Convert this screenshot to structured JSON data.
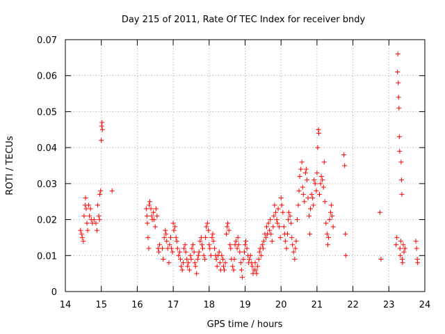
{
  "chart_data": {
    "type": "scatter",
    "title": "Day 215 of 2011, Rate Of TEC Index for receiver bndy",
    "xlabel": "GPS time / hours",
    "ylabel": "ROTI / TECUs",
    "xlim": [
      14,
      24
    ],
    "ylim": [
      0,
      0.07
    ],
    "x_ticks": [
      "14",
      "15",
      "16",
      "17",
      "18",
      "19",
      "20",
      "21",
      "22",
      "23",
      "24"
    ],
    "y_ticks": [
      "0",
      "0.01",
      "0.02",
      "0.03",
      "0.04",
      "0.05",
      "0.06",
      "0.07"
    ],
    "grid": true,
    "marker": "+",
    "color": "#ff0000",
    "series": [
      {
        "points": [
          [
            14.42,
            0.017
          ],
          [
            14.45,
            0.016
          ],
          [
            14.47,
            0.015
          ],
          [
            14.5,
            0.014
          ],
          [
            14.52,
            0.021
          ],
          [
            14.55,
            0.024
          ],
          [
            14.56,
            0.026
          ],
          [
            14.58,
            0.023
          ],
          [
            14.6,
            0.019
          ],
          [
            14.62,
            0.017
          ],
          [
            14.65,
            0.024
          ],
          [
            14.67,
            0.021
          ],
          [
            14.7,
            0.023
          ],
          [
            14.72,
            0.02
          ],
          [
            14.75,
            0.019
          ],
          [
            14.8,
            0.02
          ],
          [
            14.85,
            0.019
          ],
          [
            14.88,
            0.017
          ],
          [
            14.9,
            0.024
          ],
          [
            14.93,
            0.021
          ],
          [
            14.95,
            0.02
          ],
          [
            14.96,
            0.027
          ],
          [
            14.98,
            0.028
          ],
          [
            15.0,
            0.042
          ],
          [
            15.01,
            0.046
          ],
          [
            15.02,
            0.047
          ],
          [
            15.03,
            0.045
          ],
          [
            15.3,
            0.028
          ],
          [
            16.25,
            0.023
          ],
          [
            16.27,
            0.021
          ],
          [
            16.28,
            0.019
          ],
          [
            16.3,
            0.015
          ],
          [
            16.32,
            0.012
          ],
          [
            16.33,
            0.024
          ],
          [
            16.35,
            0.025
          ],
          [
            16.38,
            0.023
          ],
          [
            16.4,
            0.021
          ],
          [
            16.42,
            0.02
          ],
          [
            16.45,
            0.022
          ],
          [
            16.47,
            0.02
          ],
          [
            16.5,
            0.018
          ],
          [
            16.52,
            0.023
          ],
          [
            16.55,
            0.021
          ],
          [
            16.58,
            0.012
          ],
          [
            16.6,
            0.011
          ],
          [
            16.62,
            0.013
          ],
          [
            16.7,
            0.012
          ],
          [
            16.72,
            0.009
          ],
          [
            16.75,
            0.015
          ],
          [
            16.78,
            0.017
          ],
          [
            16.8,
            0.016
          ],
          [
            16.82,
            0.014
          ],
          [
            16.85,
            0.012
          ],
          [
            16.88,
            0.008
          ],
          [
            16.9,
            0.013
          ],
          [
            16.93,
            0.015
          ],
          [
            16.95,
            0.012
          ],
          [
            16.98,
            0.011
          ],
          [
            17.0,
            0.019
          ],
          [
            17.02,
            0.017
          ],
          [
            17.05,
            0.018
          ],
          [
            17.08,
            0.015
          ],
          [
            17.1,
            0.014
          ],
          [
            17.12,
            0.012
          ],
          [
            17.15,
            0.01
          ],
          [
            17.18,
            0.011
          ],
          [
            17.2,
            0.009
          ],
          [
            17.22,
            0.007
          ],
          [
            17.25,
            0.006
          ],
          [
            17.28,
            0.008
          ],
          [
            17.3,
            0.012
          ],
          [
            17.33,
            0.013
          ],
          [
            17.35,
            0.011
          ],
          [
            17.38,
            0.009
          ],
          [
            17.4,
            0.007
          ],
          [
            17.42,
            0.008
          ],
          [
            17.45,
            0.006
          ],
          [
            17.48,
            0.01
          ],
          [
            17.5,
            0.009
          ],
          [
            17.52,
            0.012
          ],
          [
            17.55,
            0.013
          ],
          [
            17.58,
            0.011
          ],
          [
            17.6,
            0.008
          ],
          [
            17.62,
            0.007
          ],
          [
            17.65,
            0.005
          ],
          [
            17.68,
            0.009
          ],
          [
            17.7,
            0.01
          ],
          [
            17.72,
            0.011
          ],
          [
            17.75,
            0.014
          ],
          [
            17.78,
            0.015
          ],
          [
            17.8,
            0.013
          ],
          [
            17.82,
            0.012
          ],
          [
            17.85,
            0.01
          ],
          [
            17.88,
            0.009
          ],
          [
            17.9,
            0.015
          ],
          [
            17.92,
            0.018
          ],
          [
            17.95,
            0.019
          ],
          [
            17.98,
            0.017
          ],
          [
            18.0,
            0.013
          ],
          [
            18.02,
            0.012
          ],
          [
            18.05,
            0.01
          ],
          [
            18.08,
            0.015
          ],
          [
            18.1,
            0.016
          ],
          [
            18.12,
            0.014
          ],
          [
            18.15,
            0.012
          ],
          [
            18.18,
            0.01
          ],
          [
            18.2,
            0.009
          ],
          [
            18.22,
            0.007
          ],
          [
            18.25,
            0.01
          ],
          [
            18.28,
            0.011
          ],
          [
            18.3,
            0.008
          ],
          [
            18.32,
            0.006
          ],
          [
            18.35,
            0.01
          ],
          [
            18.38,
            0.009
          ],
          [
            18.4,
            0.007
          ],
          [
            18.42,
            0.006
          ],
          [
            18.45,
            0.008
          ],
          [
            18.48,
            0.016
          ],
          [
            18.5,
            0.018
          ],
          [
            18.52,
            0.019
          ],
          [
            18.55,
            0.017
          ],
          [
            18.58,
            0.013
          ],
          [
            18.6,
            0.012
          ],
          [
            18.62,
            0.009
          ],
          [
            18.65,
            0.007
          ],
          [
            18.68,
            0.006
          ],
          [
            18.7,
            0.009
          ],
          [
            18.72,
            0.013
          ],
          [
            18.75,
            0.014
          ],
          [
            18.78,
            0.012
          ],
          [
            18.8,
            0.015
          ],
          [
            18.82,
            0.013
          ],
          [
            18.85,
            0.011
          ],
          [
            18.88,
            0.008
          ],
          [
            18.9,
            0.006
          ],
          [
            18.92,
            0.004
          ],
          [
            18.95,
            0.009
          ],
          [
            18.98,
            0.011
          ],
          [
            19.0,
            0.013
          ],
          [
            19.02,
            0.014
          ],
          [
            19.05,
            0.012
          ],
          [
            19.08,
            0.01
          ],
          [
            19.1,
            0.008
          ],
          [
            19.12,
            0.009
          ],
          [
            19.15,
            0.01
          ],
          [
            19.18,
            0.008
          ],
          [
            19.2,
            0.007
          ],
          [
            19.22,
            0.005
          ],
          [
            19.25,
            0.006
          ],
          [
            19.28,
            0.008
          ],
          [
            19.3,
            0.006
          ],
          [
            19.32,
            0.005
          ],
          [
            19.35,
            0.007
          ],
          [
            19.38,
            0.009
          ],
          [
            19.4,
            0.011
          ],
          [
            19.42,
            0.012
          ],
          [
            19.45,
            0.01
          ],
          [
            19.48,
            0.013
          ],
          [
            19.5,
            0.012
          ],
          [
            19.52,
            0.014
          ],
          [
            19.55,
            0.016
          ],
          [
            19.58,
            0.015
          ],
          [
            19.6,
            0.018
          ],
          [
            19.62,
            0.016
          ],
          [
            19.65,
            0.019
          ],
          [
            19.68,
            0.017
          ],
          [
            19.7,
            0.02
          ],
          [
            19.72,
            0.016
          ],
          [
            19.75,
            0.014
          ],
          [
            19.78,
            0.018
          ],
          [
            19.8,
            0.021
          ],
          [
            19.82,
            0.024
          ],
          [
            19.85,
            0.022
          ],
          [
            19.88,
            0.02
          ],
          [
            19.9,
            0.019
          ],
          [
            19.92,
            0.023
          ],
          [
            19.95,
            0.018
          ],
          [
            19.98,
            0.015
          ],
          [
            20.0,
            0.026
          ],
          [
            20.02,
            0.024
          ],
          [
            20.05,
            0.022
          ],
          [
            20.08,
            0.018
          ],
          [
            20.1,
            0.016
          ],
          [
            20.12,
            0.014
          ],
          [
            20.15,
            0.012
          ],
          [
            20.18,
            0.016
          ],
          [
            20.2,
            0.02
          ],
          [
            20.22,
            0.022
          ],
          [
            20.25,
            0.021
          ],
          [
            20.28,
            0.019
          ],
          [
            20.3,
            0.015
          ],
          [
            20.32,
            0.013
          ],
          [
            20.35,
            0.011
          ],
          [
            20.38,
            0.009
          ],
          [
            20.4,
            0.012
          ],
          [
            20.42,
            0.014
          ],
          [
            20.45,
            0.02
          ],
          [
            20.48,
            0.024
          ],
          [
            20.5,
            0.028
          ],
          [
            20.52,
            0.032
          ],
          [
            20.55,
            0.034
          ],
          [
            20.58,
            0.036
          ],
          [
            20.6,
            0.029
          ],
          [
            20.62,
            0.027
          ],
          [
            20.65,
            0.025
          ],
          [
            20.68,
            0.033
          ],
          [
            20.7,
            0.034
          ],
          [
            20.72,
            0.031
          ],
          [
            20.75,
            0.026
          ],
          [
            20.78,
            0.021
          ],
          [
            20.8,
            0.016
          ],
          [
            20.82,
            0.023
          ],
          [
            20.85,
            0.027
          ],
          [
            20.88,
            0.026
          ],
          [
            20.9,
            0.024
          ],
          [
            20.92,
            0.031
          ],
          [
            20.95,
            0.03
          ],
          [
            20.98,
            0.028
          ],
          [
            21.0,
            0.033
          ],
          [
            21.02,
            0.04
          ],
          [
            21.04,
            0.045
          ],
          [
            21.05,
            0.044
          ],
          [
            21.07,
            0.027
          ],
          [
            21.1,
            0.03
          ],
          [
            21.12,
            0.032
          ],
          [
            21.15,
            0.031
          ],
          [
            21.18,
            0.029
          ],
          [
            21.2,
            0.036
          ],
          [
            21.22,
            0.025
          ],
          [
            21.25,
            0.019
          ],
          [
            21.28,
            0.016
          ],
          [
            21.3,
            0.013
          ],
          [
            21.32,
            0.015
          ],
          [
            21.35,
            0.02
          ],
          [
            21.38,
            0.022
          ],
          [
            21.4,
            0.024
          ],
          [
            21.42,
            0.021
          ],
          [
            21.45,
            0.018
          ],
          [
            21.75,
            0.038
          ],
          [
            21.77,
            0.035
          ],
          [
            21.79,
            0.016
          ],
          [
            21.8,
            0.01
          ],
          [
            22.75,
            0.022
          ],
          [
            22.78,
            0.009
          ],
          [
            23.2,
            0.013
          ],
          [
            23.22,
            0.015
          ],
          [
            23.24,
            0.061
          ],
          [
            23.25,
            0.066
          ],
          [
            23.26,
            0.058
          ],
          [
            23.27,
            0.054
          ],
          [
            23.28,
            0.051
          ],
          [
            23.29,
            0.043
          ],
          [
            23.3,
            0.039
          ],
          [
            23.31,
            0.012
          ],
          [
            23.32,
            0.01
          ],
          [
            23.33,
            0.014
          ],
          [
            23.34,
            0.036
          ],
          [
            23.35,
            0.031
          ],
          [
            23.36,
            0.027
          ],
          [
            23.37,
            0.009
          ],
          [
            23.38,
            0.008
          ],
          [
            23.4,
            0.013
          ],
          [
            23.42,
            0.011
          ],
          [
            23.45,
            0.012
          ],
          [
            23.75,
            0.014
          ],
          [
            23.77,
            0.012
          ],
          [
            23.79,
            0.009
          ],
          [
            23.8,
            0.008
          ]
        ]
      }
    ]
  }
}
